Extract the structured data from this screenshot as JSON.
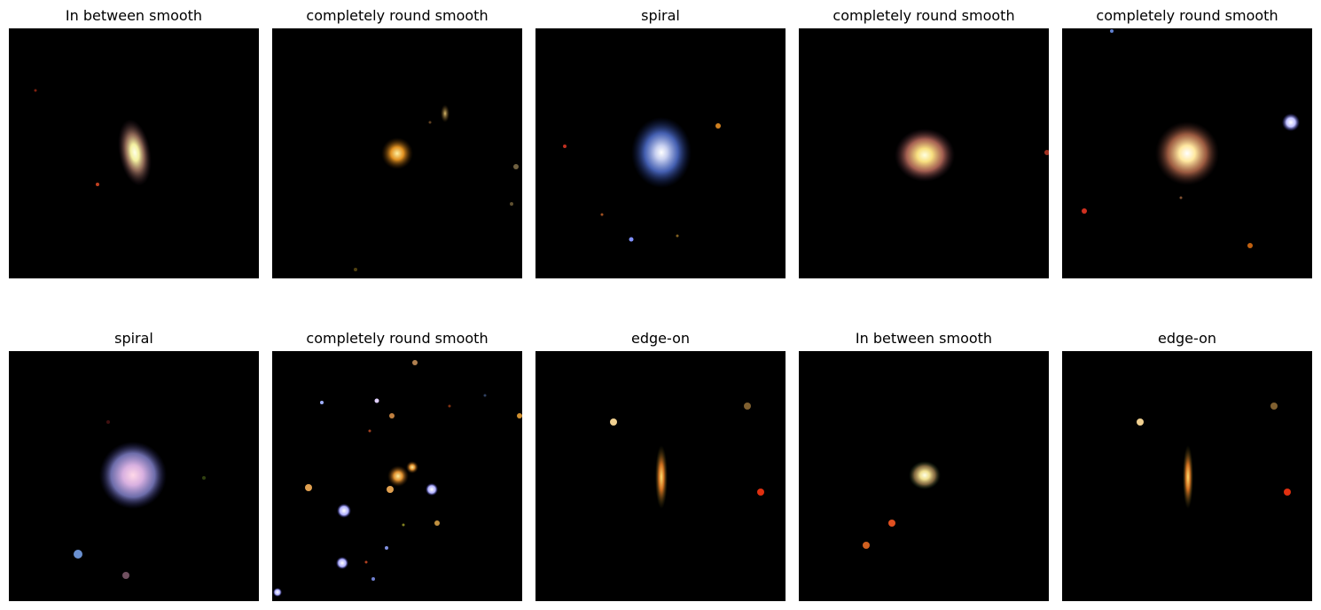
{
  "figure": {
    "panels": [
      {
        "title": "In between smooth"
      },
      {
        "title": "completely round smooth"
      },
      {
        "title": "spiral"
      },
      {
        "title": "completely round smooth"
      },
      {
        "title": "completely round smooth"
      },
      {
        "title": "spiral"
      },
      {
        "title": "completely round smooth"
      },
      {
        "title": "edge-on"
      },
      {
        "title": "In between smooth"
      },
      {
        "title": "edge-on"
      }
    ]
  }
}
